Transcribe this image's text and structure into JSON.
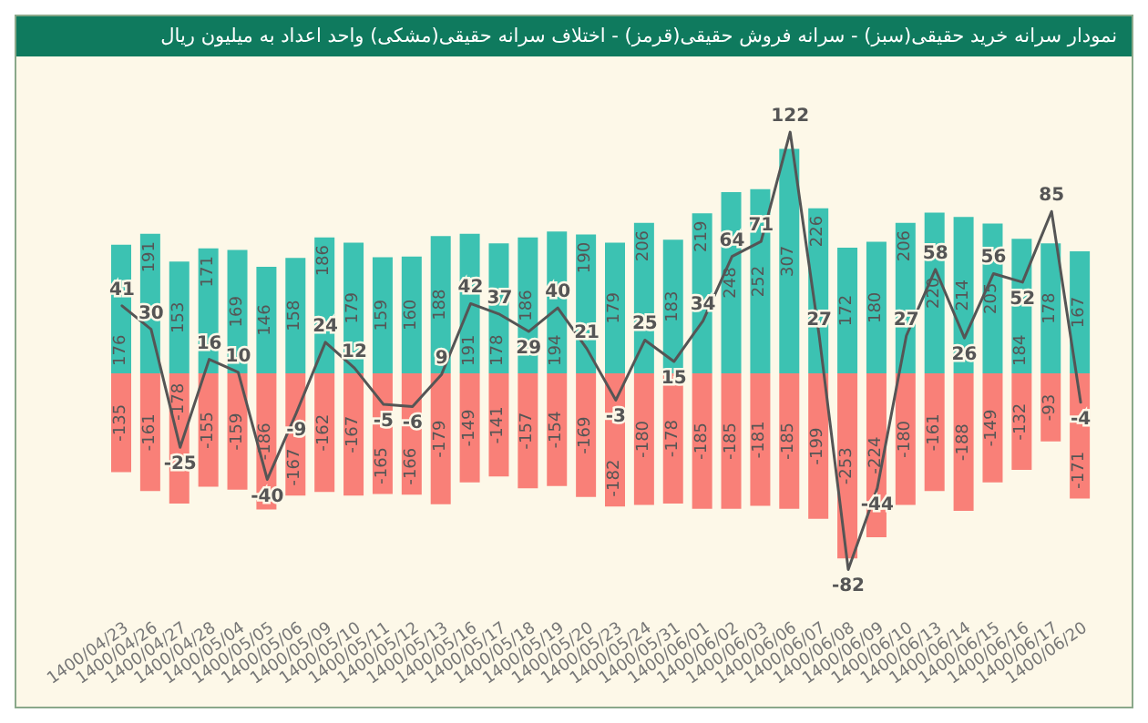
{
  "chart_data": {
    "type": "bar",
    "title": "نمودار سرانه خرید حقیقی(سبز) - سرانه فروش حقیقی(قرمز) - اختلاف سرانه حقیقی(مشکی) واحد اعداد به میلیون ریال",
    "categories": [
      "1400/04/23",
      "1400/04/26",
      "1400/04/27",
      "1400/04/28",
      "1400/05/04",
      "1400/05/05",
      "1400/05/06",
      "1400/05/09",
      "1400/05/10",
      "1400/05/11",
      "1400/05/12",
      "1400/05/13",
      "1400/05/16",
      "1400/05/17",
      "1400/05/18",
      "1400/05/19",
      "1400/05/20",
      "1400/05/23",
      "1400/05/24",
      "1400/05/31",
      "1400/06/01",
      "1400/06/02",
      "1400/06/03",
      "1400/06/06",
      "1400/06/07",
      "1400/06/08",
      "1400/06/09",
      "1400/06/10",
      "1400/06/13",
      "1400/06/14",
      "1400/06/15",
      "1400/06/16",
      "1400/06/17",
      "1400/06/20"
    ],
    "stacked": true,
    "data_labels": true,
    "legend": false,
    "grid": false,
    "tick_labels": "x",
    "marker": "none",
    "line_style": "solid",
    "series": [
      {
        "color": "#3cc2b2",
        "values": [
          176,
          191,
          153,
          171,
          169,
          146,
          158,
          186,
          179,
          159,
          160,
          188,
          191,
          178,
          186,
          194,
          190,
          179,
          206,
          183,
          219,
          248,
          252,
          307,
          226,
          172,
          180,
          206,
          220,
          214,
          205,
          184,
          178,
          167
        ]
      },
      {
        "color": "#f98078",
        "values": [
          -135,
          -161,
          -178,
          -155,
          -159,
          -186,
          -167,
          -162,
          -167,
          -165,
          -166,
          -179,
          -149,
          -141,
          -157,
          -154,
          -169,
          -182,
          -180,
          -178,
          -185,
          -185,
          -181,
          -185,
          -199,
          -253,
          -224,
          -180,
          -161,
          -188,
          -149,
          -132,
          -93,
          -171
        ]
      },
      {
        "type": "line",
        "axis": "y2",
        "color": "#555555",
        "values": [
          41,
          30,
          -25,
          16,
          10,
          -40,
          -9,
          24,
          12,
          -5,
          -6,
          9,
          42,
          37,
          29,
          40,
          21,
          -3,
          25,
          15,
          34,
          64,
          71,
          122,
          27,
          -82,
          -44,
          27,
          58,
          26,
          56,
          52,
          85,
          -4
        ]
      }
    ]
  }
}
